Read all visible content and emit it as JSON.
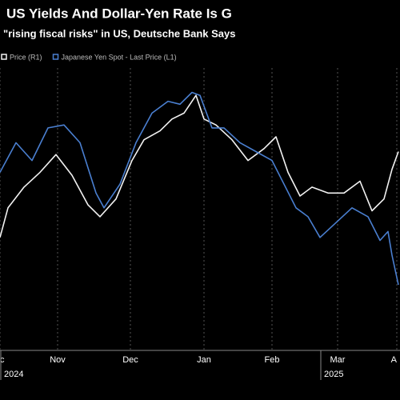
{
  "chart_data": {
    "type": "line",
    "title": "US Yields And Dollar-Yen Rate Is G",
    "subtitle": "\"rising fiscal risks\" in US, Deutsche Bank Says",
    "xlim": [
      0,
      500
    ],
    "xticks": [
      {
        "value": 0,
        "label": "c"
      },
      {
        "value": 72,
        "label": "Nov"
      },
      {
        "value": 163,
        "label": "Dec"
      },
      {
        "value": 255,
        "label": "Jan"
      },
      {
        "value": 340,
        "label": "Feb"
      },
      {
        "value": 422,
        "label": "Mar"
      },
      {
        "value": 496,
        "label": "A"
      }
    ],
    "years": [
      {
        "value": 0,
        "label": "2024"
      },
      {
        "value": 400,
        "label": "2025"
      }
    ],
    "ylim": [
      0,
      100
    ],
    "grid": true,
    "series": [
      {
        "name": "Price (R1)",
        "color": "#f2f2f2",
        "x": [
          0,
          10,
          30,
          50,
          70,
          90,
          110,
          125,
          145,
          165,
          180,
          200,
          215,
          230,
          245,
          255,
          270,
          290,
          310,
          330,
          345,
          360,
          375,
          390,
          410,
          430,
          450,
          465,
          480,
          490,
          498
        ],
        "values": [
          36,
          46,
          53,
          58,
          64,
          57,
          47,
          43,
          49,
          62,
          69,
          72,
          76,
          78,
          84,
          76,
          74,
          69,
          62,
          66,
          70,
          58,
          50,
          53,
          51,
          51,
          55,
          45,
          49,
          59,
          65
        ]
      },
      {
        "name": "Japanese Yen Spot - Last Price (L1)",
        "color": "#4a7fd0",
        "x": [
          0,
          20,
          40,
          60,
          80,
          100,
          120,
          130,
          150,
          170,
          190,
          210,
          225,
          240,
          250,
          265,
          280,
          300,
          320,
          340,
          355,
          370,
          385,
          400,
          420,
          440,
          460,
          475,
          485,
          490,
          498
        ],
        "values": [
          58,
          68,
          62,
          73,
          74,
          68,
          51,
          46,
          54,
          68,
          78,
          82,
          81,
          85,
          84,
          73,
          73,
          68,
          65,
          62,
          54,
          46,
          43,
          36,
          41,
          46,
          43,
          35,
          38,
          30,
          20
        ]
      }
    ]
  }
}
